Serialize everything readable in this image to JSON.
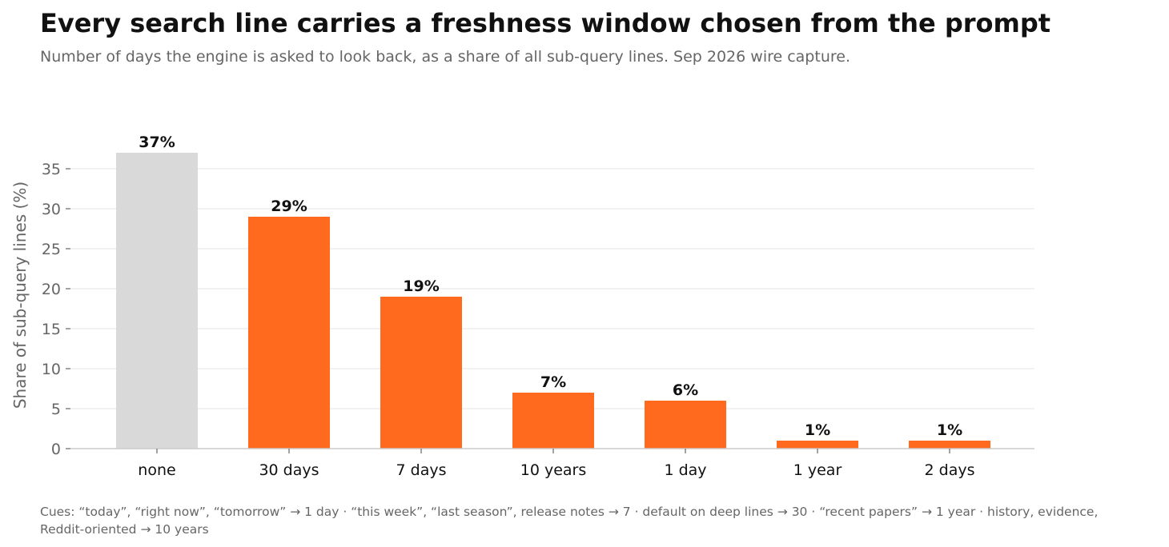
{
  "chart_data": {
    "type": "bar",
    "title": "Every search line carries a freshness window chosen from the prompt",
    "subtitle": "Number of days the engine is asked to look back, as a share of all sub-query lines. Sep 2026 wire capture.",
    "xlabel": "",
    "ylabel": "Share of sub-query lines (%)",
    "categories": [
      "none",
      "30 days",
      "7 days",
      "10 years",
      "1 day",
      "1 year",
      "2 days"
    ],
    "values": [
      37,
      29,
      19,
      7,
      6,
      1,
      1
    ],
    "value_labels": [
      "37%",
      "29%",
      "19%",
      "7%",
      "6%",
      "1%",
      "1%"
    ],
    "ylim": [
      0,
      37
    ],
    "yticks": [
      0,
      5,
      10,
      15,
      20,
      25,
      30,
      35
    ],
    "grid": true,
    "legend": "none",
    "colors": {
      "highlight": "#ff6a1f",
      "muted": "#d9d9d9"
    },
    "muted_categories": [
      "none"
    ],
    "caption": "Cues: “today”, “right now”, “tomorrow” → 1 day · “this week”, “last season”, release notes → 7 · default on deep lines → 30 · “recent papers” → 1 year · history, evidence, Reddit-oriented → 10 years"
  }
}
